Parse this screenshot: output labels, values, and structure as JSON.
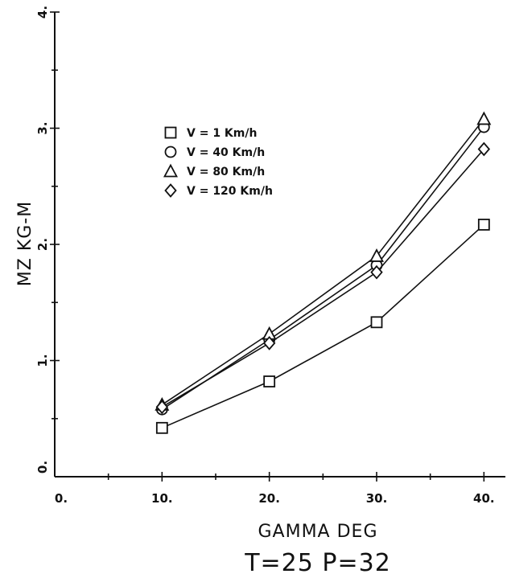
{
  "chart_data": {
    "type": "line",
    "xlabel": "GAMMA DEG",
    "ylabel": "MZ KG-M",
    "caption": "T=25 P=32",
    "xlim": [
      0,
      42
    ],
    "ylim": [
      0,
      4
    ],
    "x_tick_labels": [
      "0.",
      "10.",
      "20.",
      "30.",
      "40."
    ],
    "y_tick_labels": [
      "0.",
      "1.",
      "2.",
      "3.",
      "4."
    ],
    "x": [
      10,
      20,
      30,
      40
    ],
    "legend_position": "upper-left",
    "series": [
      {
        "name": "V = 1 Km/h",
        "marker": "square",
        "values": [
          0.42,
          0.82,
          1.33,
          2.17
        ]
      },
      {
        "name": "V = 40 Km/h",
        "marker": "circle",
        "values": [
          0.58,
          1.18,
          1.82,
          3.01
        ]
      },
      {
        "name": "V = 80 Km/h",
        "marker": "triangle",
        "values": [
          0.62,
          1.23,
          1.9,
          3.08
        ]
      },
      {
        "name": "V = 120 Km/h",
        "marker": "diamond",
        "values": [
          0.6,
          1.15,
          1.76,
          2.82
        ]
      }
    ],
    "grid": false,
    "colors": {
      "line": "#111111",
      "background": "#ffffff"
    }
  }
}
